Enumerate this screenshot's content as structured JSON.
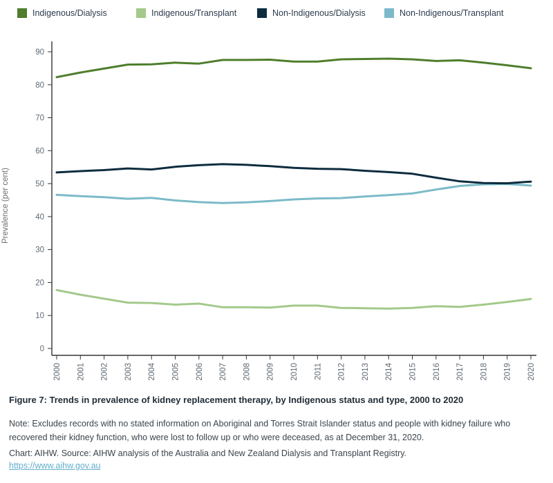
{
  "chart_data": {
    "type": "line",
    "x": [
      2000,
      2001,
      2002,
      2003,
      2004,
      2005,
      2006,
      2007,
      2008,
      2009,
      2010,
      2011,
      2012,
      2013,
      2014,
      2015,
      2016,
      2017,
      2018,
      2019,
      2020
    ],
    "series": [
      {
        "name": "Indigenous/Dialysis",
        "color": "#4e7d2b",
        "values": [
          82.3,
          83.7,
          84.9,
          86.1,
          86.2,
          86.7,
          86.4,
          87.5,
          87.5,
          87.6,
          87.0,
          87.0,
          87.7,
          87.8,
          87.9,
          87.7,
          87.2,
          87.4,
          86.7,
          85.9,
          85.0
        ]
      },
      {
        "name": "Indigenous/Transplant",
        "color": "#a4c98b",
        "values": [
          17.7,
          16.3,
          15.1,
          13.9,
          13.8,
          13.3,
          13.6,
          12.5,
          12.5,
          12.4,
          13.0,
          13.0,
          12.3,
          12.2,
          12.1,
          12.3,
          12.8,
          12.6,
          13.3,
          14.1,
          15.0
        ]
      },
      {
        "name": "Non-Indigenous/Dialysis",
        "color": "#0d2c3f",
        "values": [
          53.4,
          53.8,
          54.1,
          54.6,
          54.3,
          55.1,
          55.6,
          55.9,
          55.7,
          55.3,
          54.8,
          54.5,
          54.4,
          53.9,
          53.5,
          53.0,
          51.8,
          50.7,
          50.2,
          50.1,
          50.6
        ]
      },
      {
        "name": "Non-Indigenous/Transplant",
        "color": "#7cbac9",
        "values": [
          46.6,
          46.2,
          45.9,
          45.4,
          45.7,
          44.9,
          44.4,
          44.1,
          44.3,
          44.7,
          45.2,
          45.5,
          45.6,
          46.1,
          46.5,
          47.0,
          48.2,
          49.3,
          49.8,
          49.9,
          49.4
        ]
      }
    ],
    "title": "",
    "xlabel": "",
    "ylabel": "Prevalence (per cent)",
    "ylim": [
      0,
      90
    ],
    "yticks": [
      0,
      10,
      20,
      30,
      40,
      50,
      60,
      70,
      80,
      90
    ],
    "grid": false,
    "legend_position": "top"
  },
  "footer": {
    "caption": "Figure 7: Trends in prevalence of kidney replacement therapy, by Indigenous status and type, 2000 to 2020",
    "note": "Note: Excludes records with no stated information on Aboriginal and Torres Strait Islander status and people with kidney failure who recovered their kidney function, who were lost to follow up or who were deceased, as at December 31, 2020.",
    "source": "Chart: AIHW. Source: AIHW analysis of the Australia and New Zealand Dialysis and Transplant Registry.",
    "link": "https://www.aihw.gov.au"
  }
}
